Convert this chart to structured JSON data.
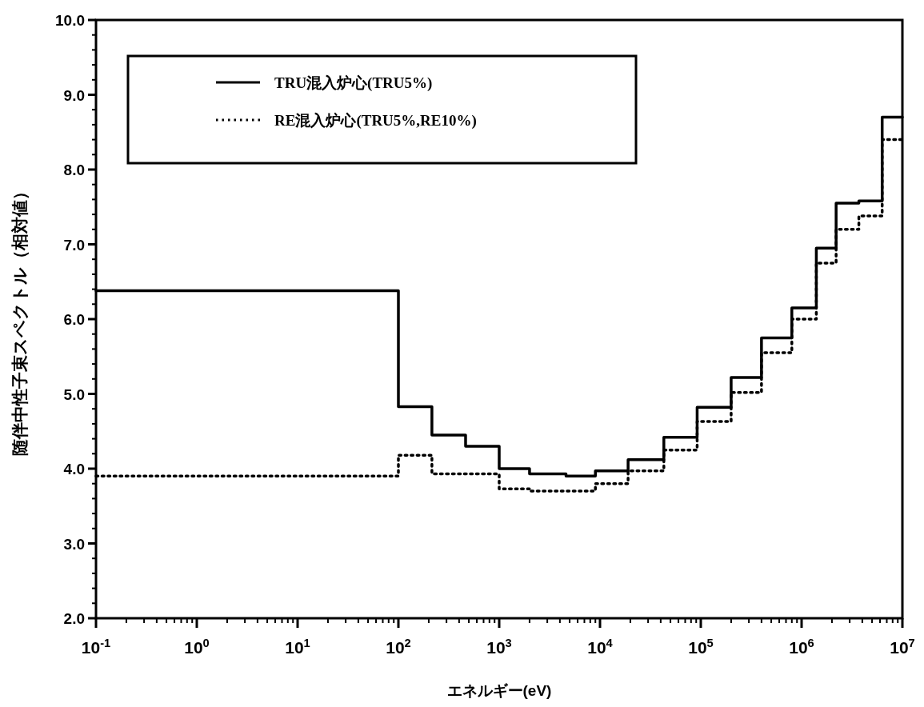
{
  "chart_data": {
    "type": "step",
    "xlabel": "エネルギー(eV)",
    "ylabel": "随伴中性子束スペクトル（相対値）",
    "log": "x",
    "x": [
      0.1,
      100,
      215,
      464,
      1000,
      2000,
      4600,
      9000,
      19000,
      43000,
      92000,
      200000,
      400000,
      800000,
      1400000,
      2200000,
      3700000,
      6300000,
      10000000
    ],
    "series": [
      {
        "name": "TRU混入炉心(TRU5%)",
        "color": "#000000",
        "line_style": "solid",
        "values": [
          6.38,
          4.83,
          4.45,
          4.3,
          4.0,
          3.93,
          3.9,
          3.97,
          4.12,
          4.42,
          4.82,
          5.22,
          5.75,
          6.15,
          6.95,
          7.55,
          7.58,
          8.7,
          8.7
        ]
      },
      {
        "name": "RE混入炉心(TRU5%,RE10%)",
        "color": "#000000",
        "line_style": "dotted",
        "values": [
          3.9,
          4.18,
          3.93,
          3.93,
          3.73,
          3.7,
          3.7,
          3.8,
          3.97,
          4.25,
          4.63,
          5.02,
          5.55,
          6.0,
          6.75,
          7.2,
          7.38,
          8.4,
          8.4
        ]
      }
    ],
    "xlim": [
      0.1,
      10000000
    ],
    "ylim": [
      2.0,
      10.0
    ],
    "xticks": [
      {
        "value": 0.1,
        "label": "10$^{-1}$"
      },
      {
        "value": 1,
        "label": "10$^{0}$"
      },
      {
        "value": 10,
        "label": "10$^{1}$"
      },
      {
        "value": 100,
        "label": "10$^{2}$"
      },
      {
        "value": 1000,
        "label": "10$^{3}$"
      },
      {
        "value": 10000,
        "label": "10$^{4}$"
      },
      {
        "value": 100000,
        "label": "10$^{5}$"
      },
      {
        "value": 1000000,
        "label": "10$^{6}$"
      },
      {
        "value": 10000000,
        "label": "10$^{7}$"
      }
    ],
    "yticks": [
      {
        "value": 2,
        "label": "2.0"
      },
      {
        "value": 3,
        "label": "3.0"
      },
      {
        "value": 4,
        "label": "4.0"
      },
      {
        "value": 5,
        "label": "5.0"
      },
      {
        "value": 6,
        "label": "6.0"
      },
      {
        "value": 7,
        "label": "7.0"
      },
      {
        "value": 8,
        "label": "8.0"
      },
      {
        "value": 9,
        "label": "9.0"
      },
      {
        "value": 10,
        "label": "10.0"
      }
    ],
    "grid": false,
    "legend": "top left"
  }
}
